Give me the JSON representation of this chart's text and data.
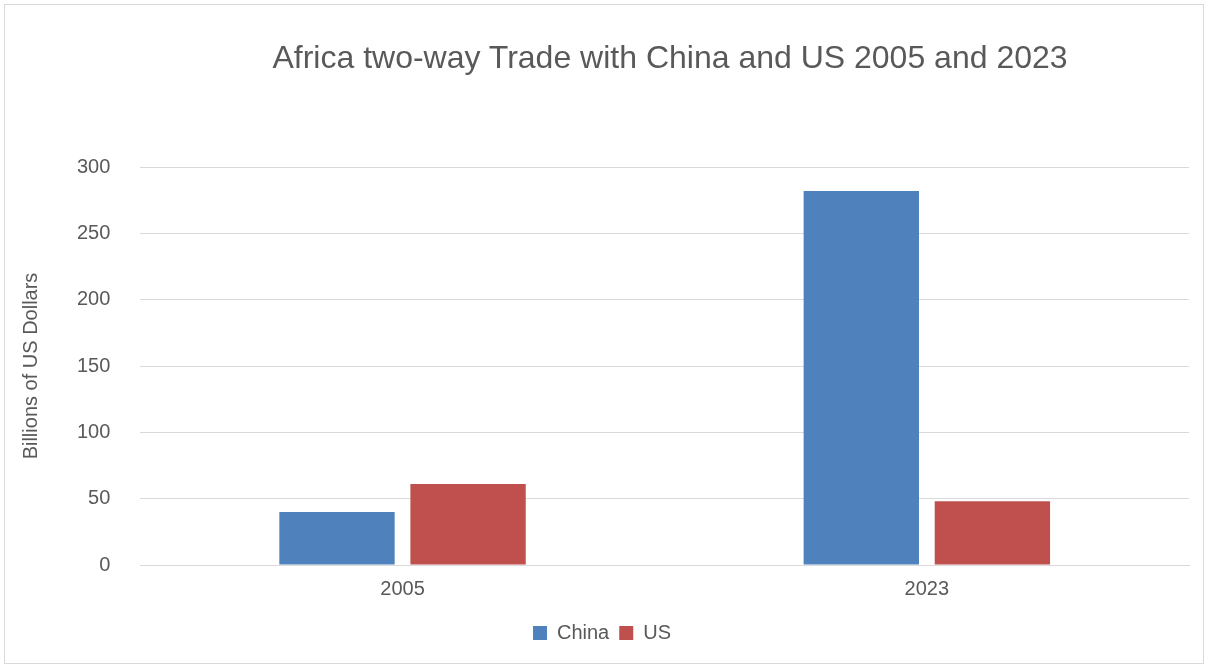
{
  "chart_data": {
    "type": "bar",
    "title": "Africa two-way Trade with China and US 2005 and 2023",
    "ylabel": "Billions of US Dollars",
    "categories": [
      "2005",
      "2023"
    ],
    "series": [
      {
        "name": "China",
        "color": "#4f81bd",
        "values": [
          40,
          282
        ]
      },
      {
        "name": "US",
        "color": "#c0504d",
        "values": [
          61,
          48
        ]
      }
    ],
    "ylim": [
      0,
      300
    ],
    "yticks": [
      0,
      50,
      100,
      150,
      200,
      250,
      300
    ],
    "grid": "y",
    "legend": "bottom"
  }
}
